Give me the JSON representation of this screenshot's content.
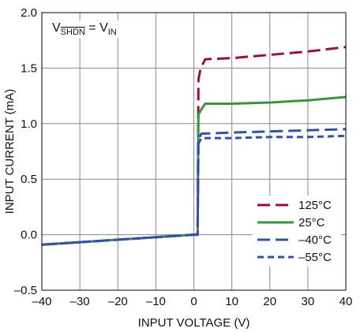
{
  "chart_data": {
    "type": "line",
    "xlabel": "INPUT VOLTAGE (V)",
    "ylabel": "INPUT CURRENT (mA)",
    "xlim": [
      -40,
      40
    ],
    "ylim": [
      -0.5,
      2.0
    ],
    "x_ticks": [
      -40,
      -30,
      -20,
      -10,
      0,
      10,
      20,
      30,
      40
    ],
    "x_tick_labels": [
      "–40",
      "–30",
      "–20",
      "–10",
      "0",
      "10",
      "20",
      "30",
      "40"
    ],
    "y_ticks": [
      -0.5,
      0.0,
      0.5,
      1.0,
      1.5,
      2.0
    ],
    "y_tick_labels": [
      "–0.5",
      "0.0",
      "0.5",
      "1.0",
      "1.5",
      "2.0"
    ],
    "grid": true,
    "legend_position": "bottom-right",
    "annotation": {
      "v_prefix": "V",
      "v_sub1": "SHDN",
      "equals": " = V",
      "v_sub2": "IN"
    },
    "series": [
      {
        "name": "125°C",
        "color": "#9b0e3c",
        "dash": "long",
        "points": [
          [
            -40,
            -0.09
          ],
          [
            0,
            0.0
          ],
          [
            1,
            0.0
          ],
          [
            1.2,
            1.4
          ],
          [
            1.8,
            1.5
          ],
          [
            3,
            1.58
          ],
          [
            10,
            1.59
          ],
          [
            20,
            1.62
          ],
          [
            30,
            1.65
          ],
          [
            40,
            1.69
          ]
        ]
      },
      {
        "name": "25°C",
        "color": "#3d9140",
        "dash": "solid",
        "points": [
          [
            -40,
            -0.09
          ],
          [
            0,
            0.0
          ],
          [
            1,
            0.0
          ],
          [
            1.2,
            1.08
          ],
          [
            2,
            1.13
          ],
          [
            3,
            1.18
          ],
          [
            10,
            1.18
          ],
          [
            20,
            1.19
          ],
          [
            30,
            1.21
          ],
          [
            40,
            1.24
          ]
        ]
      },
      {
        "name": "–40°C",
        "color": "#3353a0",
        "dash": "long",
        "points": [
          [
            -40,
            -0.09
          ],
          [
            0,
            0.0
          ],
          [
            1,
            0.0
          ],
          [
            1.2,
            0.86
          ],
          [
            2,
            0.91
          ],
          [
            10,
            0.92
          ],
          [
            20,
            0.93
          ],
          [
            30,
            0.94
          ],
          [
            40,
            0.95
          ]
        ]
      },
      {
        "name": "–55°C",
        "color": "#3353a0",
        "dash": "short",
        "points": [
          [
            -40,
            -0.09
          ],
          [
            0,
            0.0
          ],
          [
            1,
            0.0
          ],
          [
            1.2,
            0.82
          ],
          [
            2,
            0.87
          ],
          [
            10,
            0.87
          ],
          [
            20,
            0.88
          ],
          [
            30,
            0.88
          ],
          [
            40,
            0.89
          ]
        ]
      }
    ]
  }
}
